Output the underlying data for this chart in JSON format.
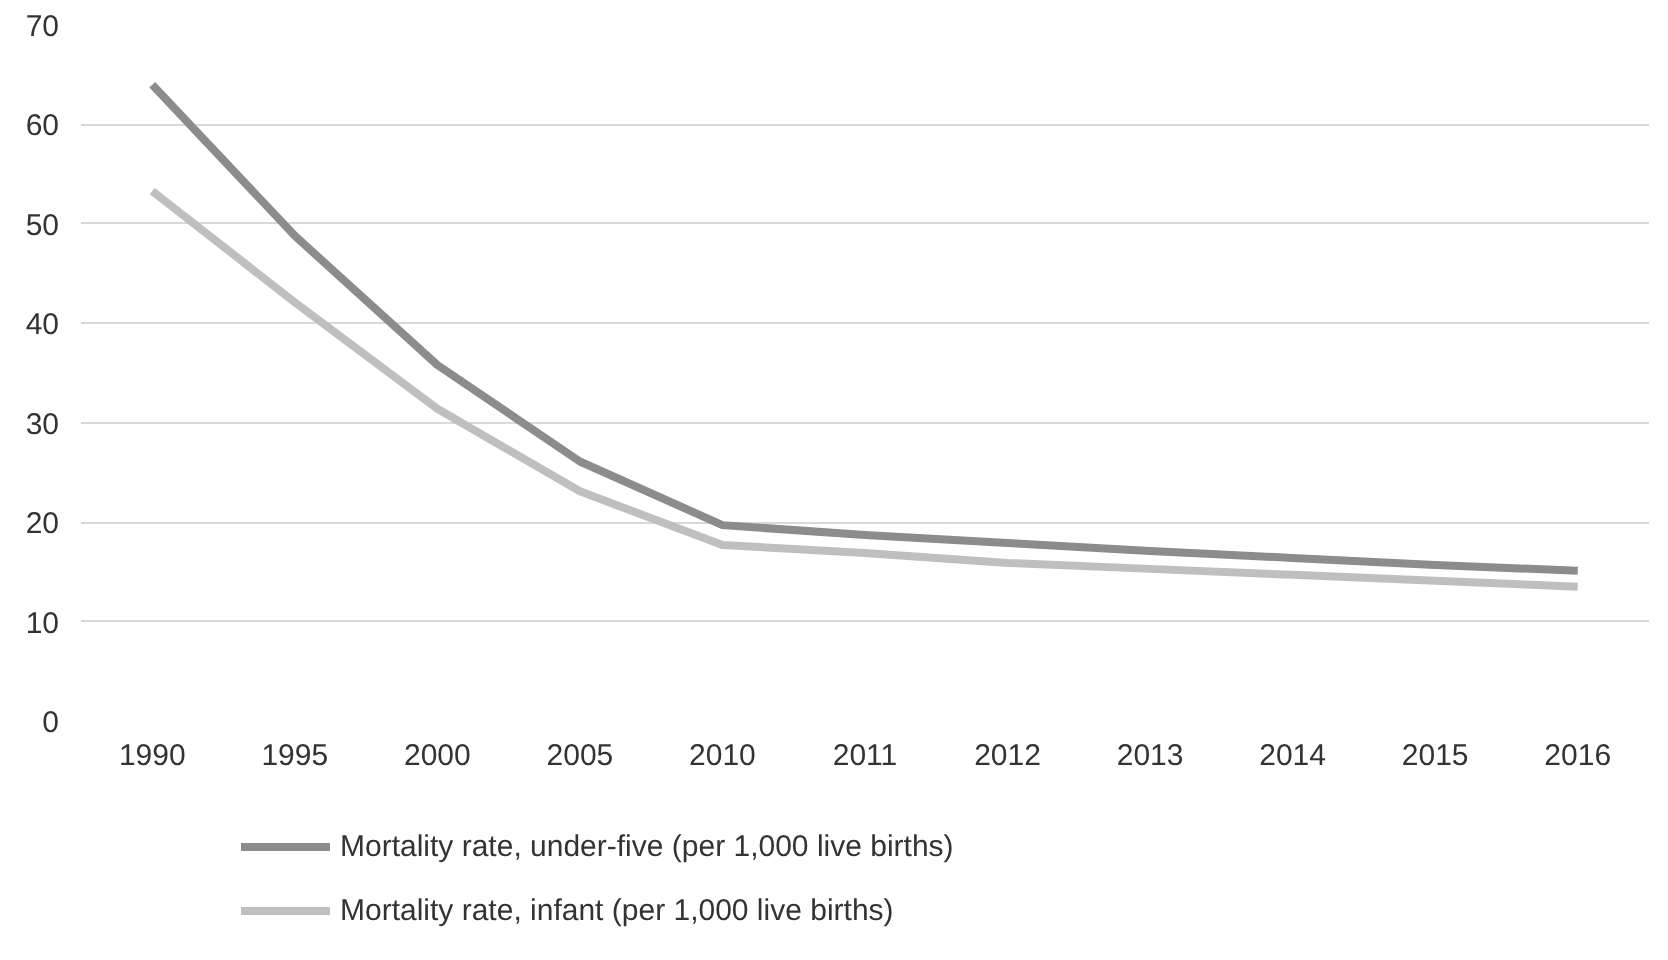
{
  "chart_data": {
    "type": "line",
    "categories": [
      "1990",
      "1995",
      "2000",
      "2005",
      "2010",
      "2011",
      "2012",
      "2013",
      "2014",
      "2015",
      "2016"
    ],
    "series": [
      {
        "name": "Mortality rate, under-five (per 1,000 live births)",
        "color": "#8c8c8c",
        "values": [
          64.0,
          48.8,
          35.8,
          26.1,
          19.7,
          18.7,
          17.9,
          17.1,
          16.4,
          15.7,
          15.1
        ]
      },
      {
        "name": "Mortality rate, infant (per 1,000 live births)",
        "color": "#bfbfbf",
        "values": [
          53.3,
          42.1,
          31.4,
          23.1,
          17.7,
          16.9,
          15.9,
          15.3,
          14.7,
          14.1,
          13.5
        ]
      }
    ],
    "ylim": [
      0,
      70
    ],
    "yticks": [
      0,
      10,
      20,
      30,
      40,
      50,
      60,
      70
    ],
    "grid": "y",
    "legend": "bottom",
    "marker": "none",
    "line_style": "solid"
  }
}
